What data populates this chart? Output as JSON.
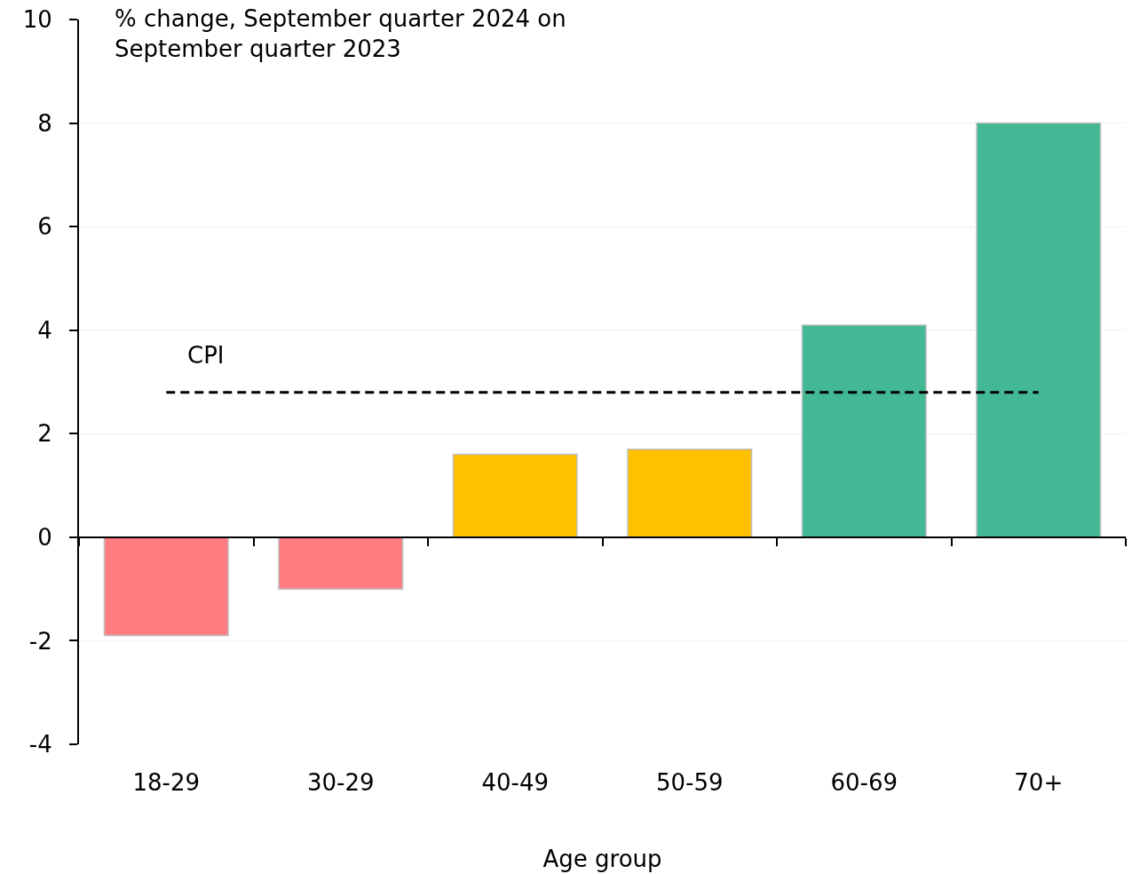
{
  "chart_data": {
    "type": "bar",
    "categories": [
      "18-29",
      "30-29",
      "40-49",
      "50-59",
      "60-69",
      "70+"
    ],
    "values": [
      -1.9,
      -1.0,
      1.6,
      1.7,
      4.1,
      8.0
    ],
    "colors": [
      "#ff7c80",
      "#ff7c80",
      "#ffc000",
      "#ffc000",
      "#43b895",
      "#43b895"
    ],
    "ylabel": "% change, September quarter 2024 on September quarter 2023",
    "xlabel": "Age group",
    "ylim": [
      -4,
      10
    ],
    "yticks": [
      -4,
      -2,
      0,
      2,
      4,
      6,
      8,
      10
    ],
    "ref_lines": [
      {
        "axis": "y",
        "value": 2.8,
        "label": "CPI",
        "color": "#000000",
        "line_style": "dashed"
      }
    ],
    "grid": "y"
  }
}
